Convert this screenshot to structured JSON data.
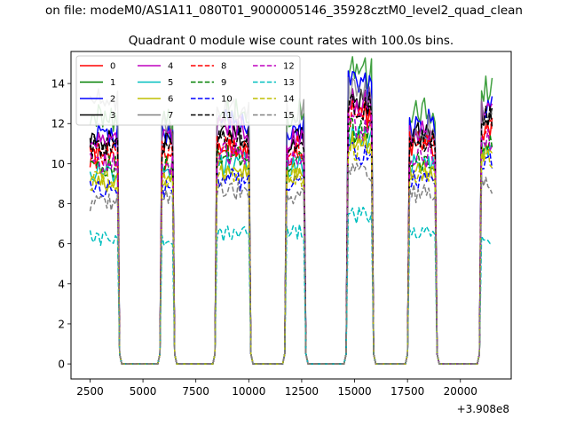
{
  "chart_data": {
    "type": "line",
    "suptitle": "on file: modeM0/AS1A11_080T01_9000005146_35928cztM0_level2_quad_clean",
    "title": "Quadrant 0 module wise count rates with 100.0s bins.",
    "xlabel": "",
    "ylabel": "",
    "offset_label": "+3.908e8",
    "xlim": [
      1600,
      22400
    ],
    "ylim": [
      -0.75,
      15.6
    ],
    "x_ticks": [
      2500,
      5000,
      7500,
      10000,
      12500,
      15000,
      17500,
      20000
    ],
    "x_tick_labels": [
      "2500",
      "5000",
      "7500",
      "10000",
      "12500",
      "15000",
      "17500",
      "20000"
    ],
    "y_ticks": [
      0,
      2,
      4,
      6,
      8,
      10,
      12,
      14
    ],
    "y_tick_labels": [
      "0",
      "2",
      "4",
      "6",
      "8",
      "10",
      "12",
      "14"
    ],
    "legend_location": "upper-left",
    "bin_seconds": 100,
    "on_segments": [
      {
        "start": 2500,
        "end": 3800
      },
      {
        "start": 5900,
        "end": 6400
      },
      {
        "start": 8500,
        "end": 10000
      },
      {
        "start": 11800,
        "end": 12600
      },
      {
        "start": 14700,
        "end": 15800
      },
      {
        "start": 17600,
        "end": 18800
      },
      {
        "start": 21000,
        "end": 21500
      }
    ],
    "series": [
      {
        "name": "0",
        "color": "#ff0000",
        "dash": "solid",
        "segment_levels": [
          10.2,
          10.0,
          10.8,
          10.5,
          12.4,
          11.0,
          11.8
        ]
      },
      {
        "name": "1",
        "color": "#008000",
        "dash": "solid",
        "segment_levels": [
          12.3,
          12.2,
          12.6,
          12.5,
          14.5,
          12.7,
          13.8
        ]
      },
      {
        "name": "2",
        "color": "#0000ff",
        "dash": "solid",
        "segment_levels": [
          11.4,
          11.5,
          12.0,
          11.8,
          13.8,
          12.0,
          13.0
        ]
      },
      {
        "name": "3",
        "color": "#000000",
        "dash": "solid",
        "segment_levels": [
          11.0,
          11.0,
          11.5,
          11.2,
          13.0,
          11.5,
          12.5
        ]
      },
      {
        "name": "4",
        "color": "#bf00bf",
        "dash": "solid",
        "segment_levels": [
          11.0,
          11.2,
          11.8,
          11.3,
          13.0,
          11.5,
          12.8
        ]
      },
      {
        "name": "5",
        "color": "#00bfbf",
        "dash": "solid",
        "segment_levels": [
          9.6,
          9.5,
          10.0,
          9.8,
          11.2,
          10.0,
          10.8
        ]
      },
      {
        "name": "6",
        "color": "#bfbf00",
        "dash": "solid",
        "segment_levels": [
          9.0,
          9.2,
          9.6,
          9.5,
          11.0,
          9.6,
          10.5
        ]
      },
      {
        "name": "7",
        "color": "#808080",
        "dash": "solid",
        "segment_levels": [
          13.2,
          11.8,
          12.5,
          12.8,
          13.5,
          11.8,
          12.5
        ]
      },
      {
        "name": "8",
        "color": "#ff0000",
        "dash": "dashed",
        "segment_levels": [
          10.6,
          10.5,
          11.0,
          10.8,
          12.5,
          11.0,
          11.8
        ]
      },
      {
        "name": "9",
        "color": "#008000",
        "dash": "dashed",
        "segment_levels": [
          9.8,
          9.8,
          10.3,
          10.0,
          11.6,
          10.2,
          11.0
        ]
      },
      {
        "name": "10",
        "color": "#0000ff",
        "dash": "dashed",
        "segment_levels": [
          8.8,
          8.8,
          9.2,
          9.0,
          10.5,
          9.2,
          10.0
        ]
      },
      {
        "name": "11",
        "color": "#000000",
        "dash": "dashed",
        "segment_levels": [
          10.8,
          10.8,
          11.3,
          11.0,
          12.8,
          11.2,
          12.2
        ]
      },
      {
        "name": "12",
        "color": "#bf00bf",
        "dash": "dashed",
        "segment_levels": [
          10.0,
          10.0,
          10.5,
          10.3,
          11.8,
          10.4,
          11.3
        ]
      },
      {
        "name": "13",
        "color": "#00bfbf",
        "dash": "dashed",
        "segment_levels": [
          6.3,
          6.2,
          6.5,
          6.6,
          7.4,
          6.6,
          6.3
        ]
      },
      {
        "name": "14",
        "color": "#bfbf00",
        "dash": "dashed",
        "segment_levels": [
          9.2,
          9.2,
          9.6,
          9.4,
          10.8,
          9.5,
          10.3
        ]
      },
      {
        "name": "15",
        "color": "#808080",
        "dash": "dashed",
        "segment_levels": [
          8.0,
          8.2,
          8.6,
          8.4,
          9.5,
          8.5,
          9.0
        ]
      }
    ]
  }
}
